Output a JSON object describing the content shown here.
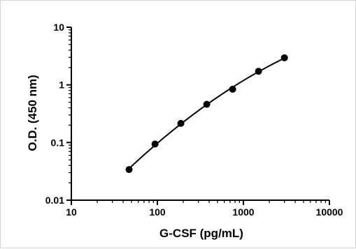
{
  "chart_data": {
    "type": "scatter",
    "title": "",
    "xlabel": "G-CSF (pg/mL)",
    "ylabel": "O.D. (450 nm)",
    "xscale": "log",
    "yscale": "log",
    "xlim": [
      10,
      10000
    ],
    "ylim": [
      0.01,
      10
    ],
    "x_ticks": [
      10,
      100,
      1000,
      10000
    ],
    "x_tick_labels": [
      "10",
      "100",
      "1000",
      "10000"
    ],
    "y_ticks": [
      0.01,
      0.1,
      1,
      10
    ],
    "y_tick_labels": [
      "0.01",
      "0.1",
      "1",
      "10"
    ],
    "grid": false,
    "legend": "none",
    "series": [
      {
        "x": [
          46.9,
          93.8,
          187.5,
          375,
          750,
          1500,
          3000
        ],
        "y": [
          0.034,
          0.094,
          0.215,
          0.46,
          0.84,
          1.72,
          2.95
        ]
      }
    ],
    "fit_curve": true,
    "colors": {
      "marker": "#000000",
      "line": "#000000",
      "axis": "#000000"
    }
  }
}
